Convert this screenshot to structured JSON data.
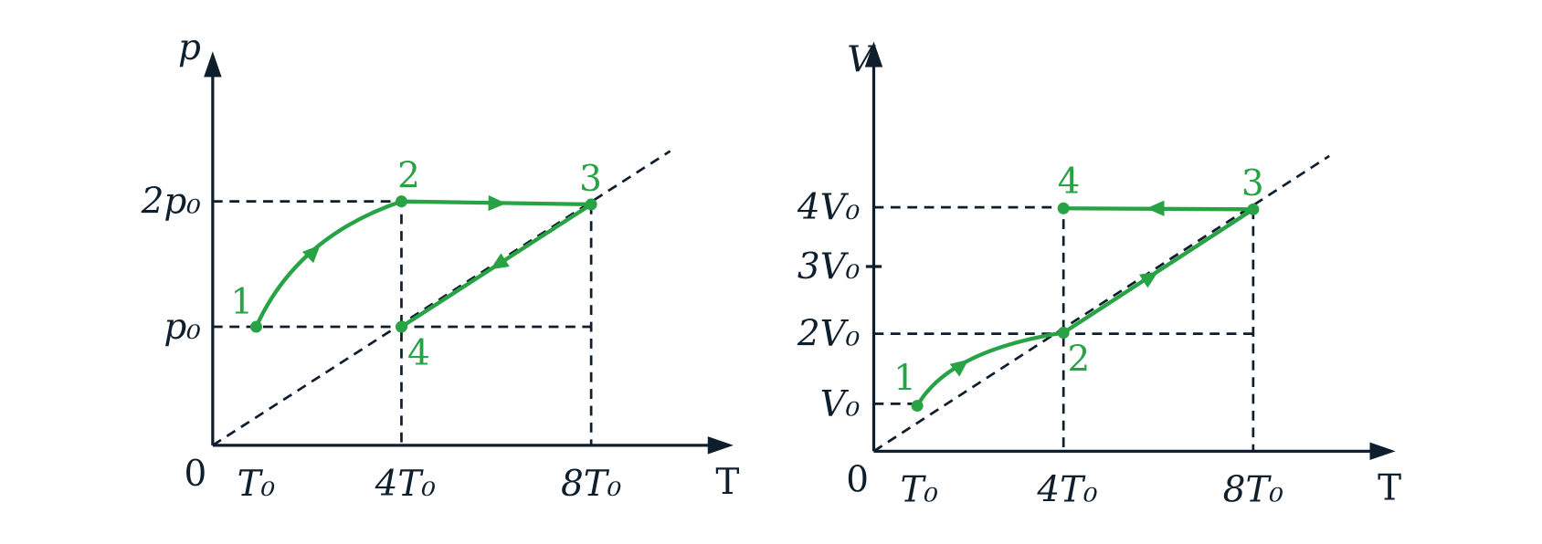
{
  "diagrams": [
    {
      "y_axis_label": "p",
      "origin_label": "0",
      "x_axis_label": "T",
      "x_ticks": [
        "T₀",
        "4T₀",
        "8T₀"
      ],
      "y_ticks": [
        "p₀",
        "2p₀"
      ],
      "points": [
        "1",
        "2",
        "3",
        "4"
      ]
    },
    {
      "y_axis_label": "V",
      "origin_label": "0",
      "x_axis_label": "T",
      "x_ticks": [
        "T₀",
        "4T₀",
        "8T₀"
      ],
      "y_ticks": [
        "V₀",
        "2V₀",
        "3V₀",
        "4V₀"
      ],
      "points": [
        "1",
        "2",
        "3",
        "4"
      ]
    }
  ]
}
